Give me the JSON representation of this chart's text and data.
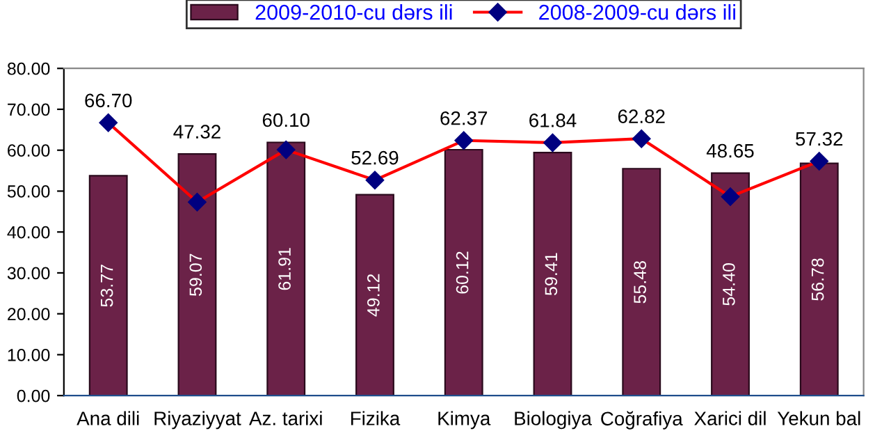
{
  "chart_data": {
    "type": "bar",
    "categories": [
      "Ana dili",
      "Riyaziyyat",
      "Az. tarixi",
      "Fizika",
      "Kimya",
      "Biologiya",
      "Coğrafiya",
      "Xarici dil",
      "Yekun bal"
    ],
    "series": [
      {
        "name": "2009-2010-cu dərs ili",
        "color": "#6b2248",
        "values": [
          53.77,
          59.07,
          61.91,
          49.12,
          60.12,
          59.41,
          55.48,
          54.4,
          56.78
        ],
        "value_labels": [
          "53.77",
          "59.07",
          "61.91",
          "49.12",
          "60.12",
          "59.41",
          "55.48",
          "54.40",
          "56.78"
        ]
      },
      {
        "name": "2008-2009-cu dərs ili",
        "type": "line",
        "color": "#ff0000",
        "marker": "diamond",
        "values": [
          66.7,
          47.32,
          60.1,
          52.69,
          62.37,
          61.84,
          62.82,
          48.65,
          57.32
        ],
        "value_labels": [
          "66.70",
          "47.32",
          "60.10",
          "52.69",
          "62.37",
          "61.84",
          "62.82",
          "48.65",
          "57.32"
        ]
      }
    ],
    "ylim": [
      0,
      80
    ],
    "yticks": [
      {
        "value": 0,
        "label": "0.00"
      },
      {
        "value": 10,
        "label": "10.00"
      },
      {
        "value": 20,
        "label": "20.00"
      },
      {
        "value": 30,
        "label": "30.00"
      },
      {
        "value": 40,
        "label": "40.00"
      },
      {
        "value": 50,
        "label": "50.00"
      },
      {
        "value": 60,
        "label": "60.00"
      },
      {
        "value": 70,
        "label": "70.00"
      },
      {
        "value": 80,
        "label": "80.00"
      }
    ],
    "grid": false,
    "legend": "top"
  }
}
